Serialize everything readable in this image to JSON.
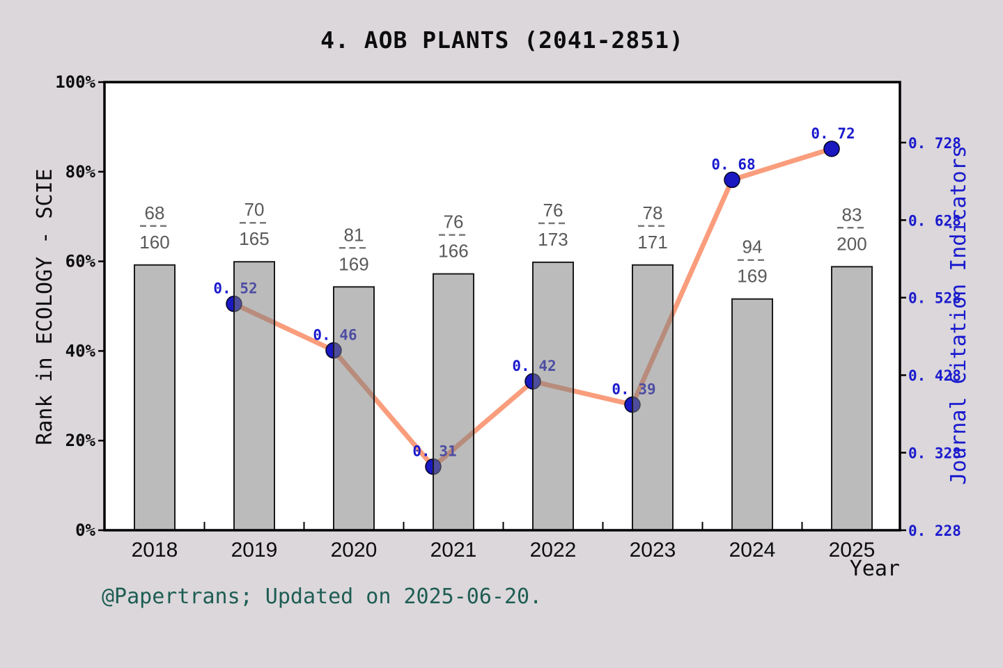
{
  "title": "4. AOB PLANTS (2041-2851)",
  "footer": "@Papertrans; Updated on 2025-06-20.",
  "axes": {
    "left": {
      "title": "Rank in ECOLOGY - SCIE",
      "tick_labels": [
        "0%",
        "20%",
        "40%",
        "60%",
        "80%",
        "100%"
      ],
      "tick_values": [
        0,
        20,
        40,
        60,
        80,
        100
      ],
      "range": [
        0,
        100
      ]
    },
    "right": {
      "title": "Journal Citation Indicators",
      "tick_labels": [
        "0. 228",
        "0. 328",
        "0. 428",
        "0. 528",
        "0. 628",
        "0. 728"
      ],
      "tick_values": [
        0.228,
        0.328,
        0.428,
        0.528,
        0.628,
        0.728
      ],
      "range": [
        0.228,
        0.806
      ]
    },
    "x": {
      "title": "Year",
      "tick_labels": [
        "2018",
        "2019",
        "2020",
        "2021",
        "2022",
        "2023",
        "2024",
        "2025"
      ]
    }
  },
  "chart_data": {
    "type": "bar+line dual-axis",
    "categories": [
      "2018",
      "2019",
      "2020",
      "2021",
      "2022",
      "2023",
      "2024",
      "2025"
    ],
    "series": [
      {
        "name": "Rank in ECOLOGY - SCIE",
        "type": "bar",
        "axis": "left",
        "unit": "percent",
        "values": [
          59.2,
          59.9,
          54.3,
          57.2,
          59.8,
          59.2,
          51.6,
          58.8
        ],
        "data_labels": [
          {
            "numerator": "68",
            "denominator": "160"
          },
          {
            "numerator": "70",
            "denominator": "165"
          },
          {
            "numerator": "81",
            "denominator": "169"
          },
          {
            "numerator": "76",
            "denominator": "166"
          },
          {
            "numerator": "76",
            "denominator": "173"
          },
          {
            "numerator": "78",
            "denominator": "171"
          },
          {
            "numerator": "94",
            "denominator": "169"
          },
          {
            "numerator": "83",
            "denominator": "200"
          }
        ]
      },
      {
        "name": "Journal Citation Indicators",
        "type": "line",
        "axis": "right",
        "categories": [
          "2019",
          "2020",
          "2021",
          "2022",
          "2023",
          "2024",
          "2025"
        ],
        "values": [
          0.52,
          0.46,
          0.31,
          0.42,
          0.39,
          0.68,
          0.72
        ],
        "data_labels": [
          "0. 52",
          "0. 46",
          "0. 31",
          "0. 42",
          "0. 39",
          "0. 68",
          "0. 72"
        ]
      }
    ],
    "legend": "none",
    "grid": "off"
  },
  "colors": {
    "background": "#DBD7DB",
    "plot_background": "#FFFFFF",
    "axis": "#000000",
    "bar_fill": "#7D7D7D",
    "bar_fill_opacity": 0.52,
    "bar_border": "#1A1A1A",
    "line": "#F99D7C",
    "marker": "#1A18C0",
    "blue_text": "#1A1ACD",
    "fraction_text": "#595959",
    "fraction_dash": "#777777",
    "footer_text": "#1E5D53",
    "tick_text": "#0D0D0D"
  }
}
